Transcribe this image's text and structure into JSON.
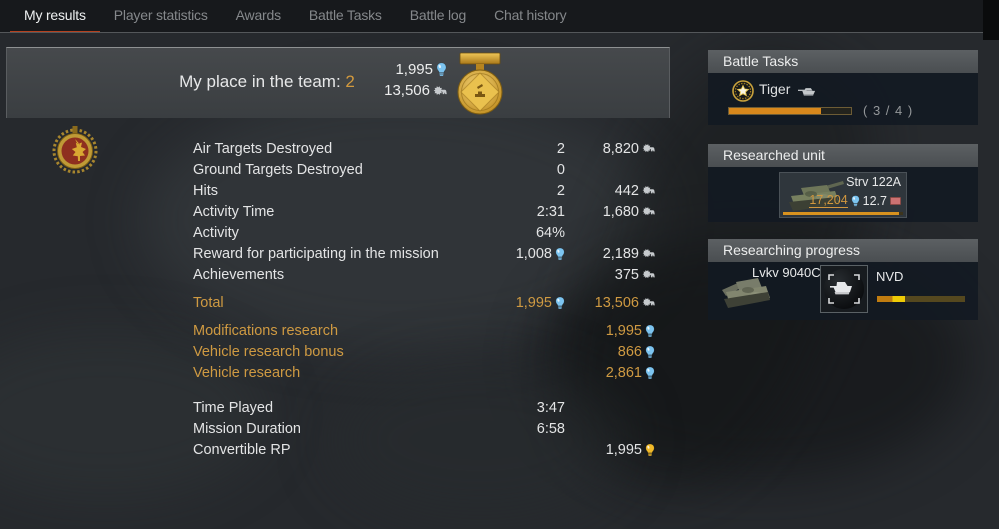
{
  "tabs": {
    "items": [
      {
        "label": "My results"
      },
      {
        "label": "Player statistics"
      },
      {
        "label": "Awards"
      },
      {
        "label": "Battle Tasks"
      },
      {
        "label": "Battle log"
      },
      {
        "label": "Chat history"
      }
    ],
    "active_index": 0
  },
  "banner": {
    "title": "My place in the team:",
    "place": "2",
    "rp_total": "1,995",
    "sl_total": "13,506"
  },
  "stats": {
    "rows": [
      {
        "label": "Air Targets Destroyed",
        "mid": "2",
        "right": "8,820"
      },
      {
        "label": "Ground Targets Destroyed",
        "mid": "0",
        "right": ""
      },
      {
        "label": "Hits",
        "mid": "2",
        "right": "442"
      },
      {
        "label": "Activity Time",
        "mid": "2:31",
        "right": "1,680"
      },
      {
        "label": "Activity",
        "mid": "64%",
        "right": ""
      },
      {
        "label": "Reward for participating in the mission",
        "mid": "1,008",
        "right": "2,189"
      },
      {
        "label": "Achievements",
        "mid": "",
        "right": "375"
      },
      {
        "label": "Total",
        "mid": "1,995",
        "right": "13,506"
      },
      {
        "label": "Modifications research",
        "mid": "",
        "right": "1,995"
      },
      {
        "label": "Vehicle research bonus",
        "mid": "",
        "right": "866"
      },
      {
        "label": "Vehicle research",
        "mid": "",
        "right": "2,861"
      },
      {
        "label": "Time Played",
        "mid": "3:47",
        "right": ""
      },
      {
        "label": "Mission Duration",
        "mid": "6:58",
        "right": ""
      },
      {
        "label": "Convertible RP",
        "mid": "",
        "right": "1,995"
      }
    ]
  },
  "panels": {
    "battle_tasks": {
      "title": "Battle Tasks",
      "task_name": "Tiger",
      "progress_text": "( 3 / 4 )",
      "progress_pct": 75
    },
    "researched_unit": {
      "title": "Researched unit",
      "unit_name": "Strv 122A",
      "rp": "17,204",
      "br": "12.7",
      "progress_pct": 97
    },
    "researching_progress": {
      "title": "Researching progress",
      "vehicle_name": "Lvkv 9040C",
      "mod_name": "NVD",
      "progress_pct": 32
    }
  },
  "colors": {
    "accent_orange": "#cf9a42",
    "tab_underline": "#b5411f",
    "progress_orange": "#d8881c",
    "progress_yellow": "#efcb06",
    "rp_icon_blue": "#7cc4f0",
    "convertible_rp_gold": "#f0b929"
  }
}
